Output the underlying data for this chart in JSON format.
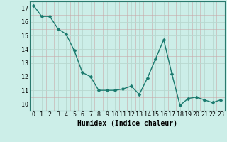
{
  "x": [
    0,
    1,
    2,
    3,
    4,
    5,
    6,
    7,
    8,
    9,
    10,
    11,
    12,
    13,
    14,
    15,
    16,
    17,
    18,
    19,
    20,
    21,
    22,
    23
  ],
  "y": [
    17.2,
    16.4,
    16.4,
    15.5,
    15.1,
    13.9,
    12.3,
    12.0,
    11.0,
    11.0,
    11.0,
    11.1,
    11.3,
    10.7,
    11.9,
    13.3,
    14.7,
    12.2,
    9.9,
    10.4,
    10.5,
    10.3,
    10.1,
    10.3
  ],
  "line_color": "#1a7a6e",
  "marker": "D",
  "marker_size": 2.5,
  "bg_color": "#cceee8",
  "grid_major_color": "#b8d8d0",
  "grid_minor_color": "#c8a8a8",
  "xlabel": "Humidex (Indice chaleur)",
  "ylim": [
    9.5,
    17.5
  ],
  "xlim": [
    -0.5,
    23.5
  ],
  "yticks": [
    10,
    11,
    12,
    13,
    14,
    15,
    16,
    17
  ],
  "xticks": [
    0,
    1,
    2,
    3,
    4,
    5,
    6,
    7,
    8,
    9,
    10,
    11,
    12,
    13,
    14,
    15,
    16,
    17,
    18,
    19,
    20,
    21,
    22,
    23
  ],
  "tick_fontsize": 6,
  "label_fontsize": 7
}
